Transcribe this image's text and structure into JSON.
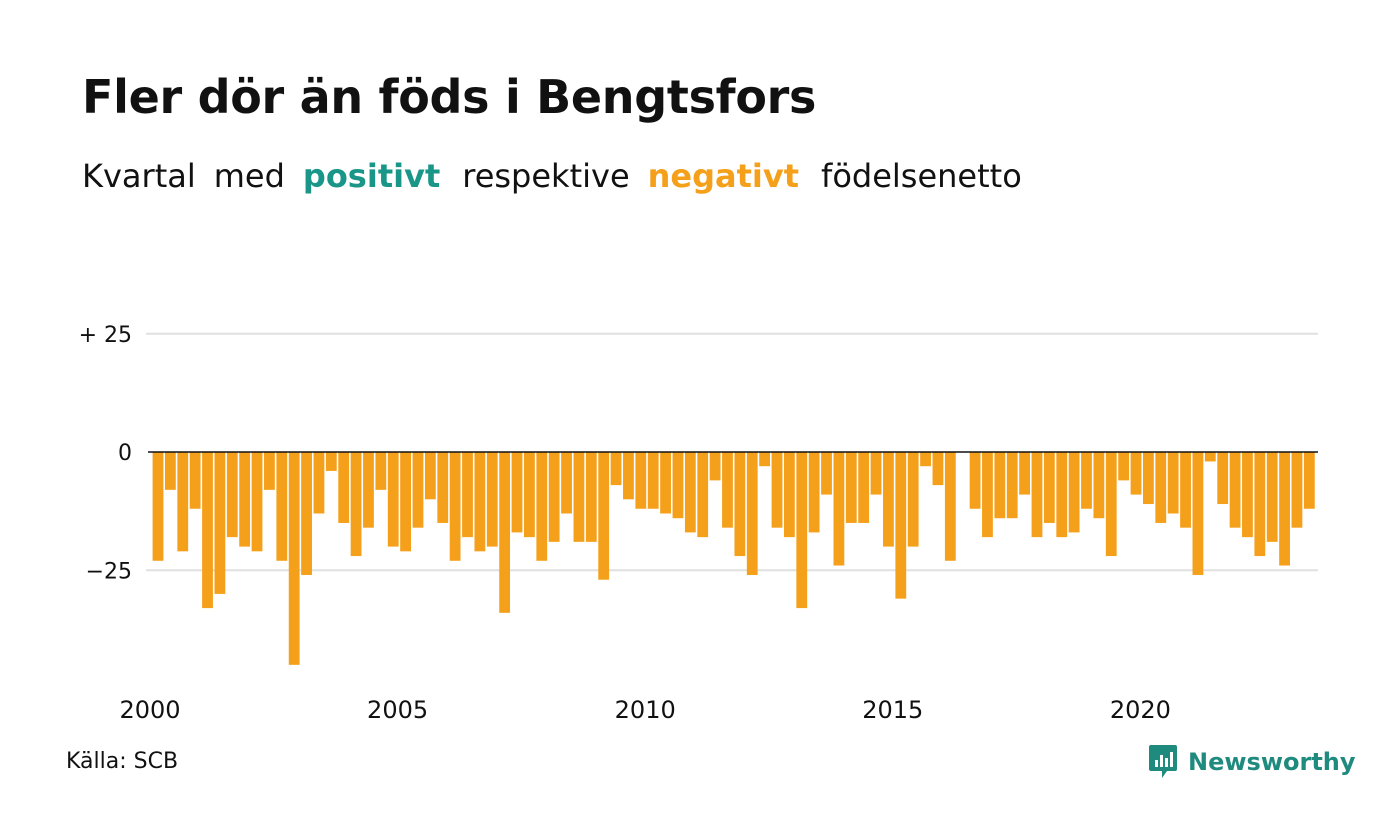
{
  "title": "Fler dör än föds i Bengtsfors",
  "subtitle": {
    "word1": "Kvartal",
    "word2": "med",
    "positive": "positivt",
    "word3": "respektive",
    "negative": "negativt",
    "word4": "födelsenetto"
  },
  "source": "Källa: SCB",
  "logo": {
    "text": "Newsworthy",
    "icon": "newsworthy-chart-bubble-icon"
  },
  "colors": {
    "positive": "#1a9688",
    "negative": "#f5a01a",
    "grid": "#e0e0e0",
    "zero_line": "#111111",
    "brand": "#1f8a7e"
  },
  "chart_data": {
    "type": "bar",
    "x_start": "2000 Q1",
    "x_tick_labels": [
      "2000",
      "2005",
      "2010",
      "2015",
      "2020"
    ],
    "y_tick_labels": [
      "+ 25",
      "0",
      "−25"
    ],
    "y_ticks": [
      25,
      0,
      -25
    ],
    "ylim": [
      -45,
      25
    ],
    "grid": true,
    "values": [
      -23,
      -8,
      -21,
      -12,
      -33,
      -30,
      -18,
      -20,
      -21,
      -8,
      -23,
      -45,
      -26,
      -13,
      -4,
      -15,
      -22,
      -16,
      -8,
      -20,
      -21,
      -16,
      -10,
      -15,
      -23,
      -18,
      -21,
      -20,
      -34,
      -17,
      -18,
      -23,
      -19,
      -13,
      -19,
      -19,
      -27,
      -7,
      -10,
      -12,
      -12,
      -13,
      -14,
      -17,
      -18,
      -6,
      -16,
      -22,
      -26,
      -3,
      -16,
      -18,
      -33,
      -17,
      -9,
      -24,
      -15,
      -15,
      -9,
      -20,
      -31,
      -20,
      -3,
      -7,
      -23,
      0,
      -12,
      -18,
      -14,
      -14,
      -9,
      -18,
      -15,
      -18,
      -17,
      -12,
      -14,
      -22,
      -6,
      -9,
      -11,
      -15,
      -13,
      -16,
      -26,
      -2,
      -11,
      -16,
      -18,
      -22,
      -19,
      -24,
      -16,
      -12
    ]
  }
}
